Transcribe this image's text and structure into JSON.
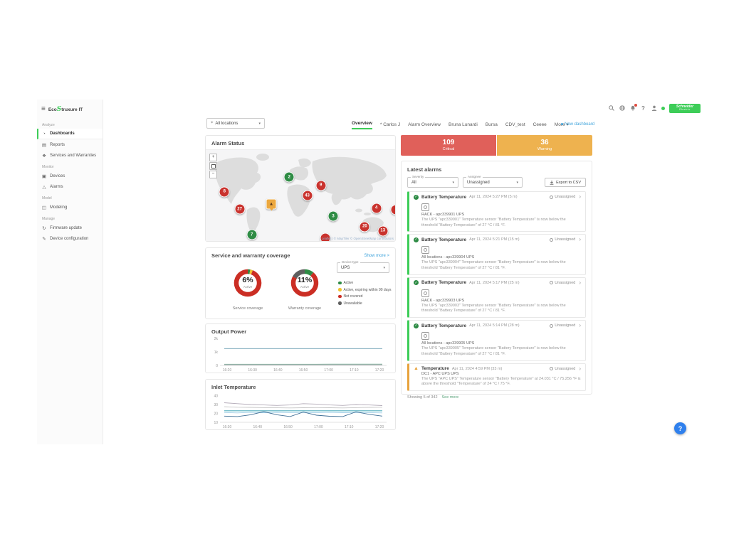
{
  "brand": {
    "logo_eco": "Eco",
    "logo_s": "S",
    "logo_rest": "truxure IT"
  },
  "header": {
    "icons": [
      "search-icon",
      "globe-icon",
      "notifications-bell-icon",
      "help-icon",
      "user-icon",
      "status-dot"
    ],
    "schneider_line1": "Schneider",
    "schneider_line2": "Electric"
  },
  "sidebar": {
    "sections": [
      {
        "label": "Analyze",
        "items": [
          {
            "label": "Dashboards",
            "icon": "dashboards-icon",
            "glyph": "◔",
            "active": true
          },
          {
            "label": "Reports",
            "icon": "reports-icon",
            "glyph": "▤",
            "active": false
          },
          {
            "label": "Services and Warranties",
            "icon": "services-warranties-icon",
            "glyph": "❖",
            "active": false
          }
        ]
      },
      {
        "label": "Monitor",
        "items": [
          {
            "label": "Devices",
            "icon": "devices-icon",
            "glyph": "▣",
            "active": false
          },
          {
            "label": "Alarms",
            "icon": "alarms-icon",
            "glyph": "△",
            "active": false
          }
        ]
      },
      {
        "label": "Model",
        "items": [
          {
            "label": "Modeling",
            "icon": "modeling-icon",
            "glyph": "◫",
            "active": false
          }
        ]
      },
      {
        "label": "Manage",
        "items": [
          {
            "label": "Firmware update",
            "icon": "firmware-update-icon",
            "glyph": "↻",
            "active": false
          },
          {
            "label": "Device configuration",
            "icon": "device-configuration-icon",
            "glyph": "✎",
            "active": false
          }
        ]
      }
    ]
  },
  "topbar": {
    "location_selector": "All locations",
    "tabs": [
      {
        "label": "Overview",
        "active": true
      },
      {
        "label": "* Carlos J",
        "active": false
      },
      {
        "label": "Alarm Overview",
        "active": false
      },
      {
        "label": "Bruna Lunardi",
        "active": false
      },
      {
        "label": "Bursa",
        "active": false
      },
      {
        "label": "CDV_test",
        "active": false
      },
      {
        "label": "Ceeee",
        "active": false
      },
      {
        "label": "More ▾",
        "active": false
      }
    ],
    "new_dashboard": "New dashboard"
  },
  "map_card": {
    "title": "Alarm Status",
    "controls": {
      "zoom_in": "+",
      "zoom_out": "−"
    },
    "attribution": "Leaflet | © MapTiler © OpenStreetMap contributors",
    "markers": [
      {
        "type": "critical",
        "count": "8",
        "x": 9.9,
        "y": 46
      },
      {
        "type": "critical",
        "count": "27",
        "x": 17.9,
        "y": 65
      },
      {
        "type": "warning",
        "count": "",
        "x": 34.6,
        "y": 59
      },
      {
        "type": "ok",
        "count": "2",
        "x": 44.1,
        "y": 30
      },
      {
        "type": "critical",
        "count": "43",
        "x": 53.6,
        "y": 50
      },
      {
        "type": "critical",
        "count": "9",
        "x": 60.8,
        "y": 39
      },
      {
        "type": "ok",
        "count": "3",
        "x": 67.3,
        "y": 73
      },
      {
        "type": "ok",
        "count": "7",
        "x": 24.3,
        "y": 93
      },
      {
        "type": "critical",
        "count": "",
        "x": 63.1,
        "y": 97
      },
      {
        "type": "critical",
        "count": "20",
        "x": 84.0,
        "y": 84
      },
      {
        "type": "critical",
        "count": "13",
        "x": 93.5,
        "y": 89
      },
      {
        "type": "critical",
        "count": "4",
        "x": 90.1,
        "y": 64
      },
      {
        "type": "critical",
        "count": "",
        "x": 100.5,
        "y": 66
      }
    ]
  },
  "alarm_summary": {
    "critical": {
      "count": "109",
      "label": "Critical",
      "color": "#e0605a"
    },
    "warning": {
      "count": "36",
      "label": "Warning",
      "color": "#eeb24f"
    }
  },
  "latest_alarms": {
    "title": "Latest alarms",
    "filters": {
      "severity_label": "Severity",
      "severity_value": "All",
      "assignee_label": "Assignee",
      "assignee_value": "Unassigned"
    },
    "export_label": "Export to CSV",
    "items": [
      {
        "severity": "cleared",
        "title": "Battery Temperature",
        "time": "Apr 11, 2024 5:27 PM (5 m)",
        "assignee": "Unassigned",
        "device": "RACK - apc339901 UPS",
        "description": "The UPS \"apc339901\" Temperature sensor \"Battery Temperature\" is now below the threshold \"Battery Temperature\" of 27 °C / 81 °F."
      },
      {
        "severity": "cleared",
        "title": "Battery Temperature",
        "time": "Apr 11, 2024 5:21 PM (15 m)",
        "assignee": "Unassigned",
        "device": "All locations - apc339904 UPS",
        "description": "The UPS \"apc339904\" Temperature sensor \"Battery Temperature\" is now below the threshold \"Battery Temperature\" of 27 °C / 81 °F."
      },
      {
        "severity": "cleared",
        "title": "Battery Temperature",
        "time": "Apr 11, 2024 5:17 PM (25 m)",
        "assignee": "Unassigned",
        "device": "RACK - apc339903 UPS",
        "description": "The UPS \"apc339903\" Temperature sensor \"Battery Temperature\" is now below the threshold \"Battery Temperature\" of 27 °C / 81 °F."
      },
      {
        "severity": "cleared",
        "title": "Battery Temperature",
        "time": "Apr 11, 2024 5:14 PM (28 m)",
        "assignee": "Unassigned",
        "device": "All locations - apc339905 UPS",
        "description": "The UPS \"apc339905\" Temperature sensor \"Battery Temperature\" is now below the threshold \"Battery Temperature\" of 27 °C / 81 °F."
      },
      {
        "severity": "warning",
        "title": "Temperature",
        "time": "Apr 11, 2024 4:59 PM (33 m)",
        "assignee": "Unassigned",
        "device": "DC1 - APC UPS UPS",
        "description": "The UPS \"APC UPS\" Temperature sensor \"Battery Temperature\" at 24.031 °C / 75.256 °F is above the threshold \"Temperature\" of 24 °C / 75 °F."
      }
    ],
    "footer": "Showing 5 of 342",
    "see_more": "See more"
  },
  "coverage_card": {
    "title": "Service and warranty coverage",
    "show_more": "Show more >",
    "device_type_label": "Device type",
    "device_type_value": "UPS",
    "legend": [
      {
        "label": "Active",
        "color": "#2e8b45"
      },
      {
        "label": "Active, expiring within 90 days",
        "color": "#f0c330"
      },
      {
        "label": "Not covered",
        "color": "#cb2e24"
      },
      {
        "label": "Unavailable",
        "color": "#5f5f5f"
      }
    ]
  },
  "chart_data": [
    {
      "id": "service-coverage",
      "type": "pie",
      "title": "Service coverage",
      "center_value": "6%",
      "center_label": "Active",
      "segments": [
        {
          "label": "Active",
          "value": 3,
          "color": "#2e8b45"
        },
        {
          "label": "Active, expiring within 90 days",
          "value": 3,
          "color": "#f0c330"
        },
        {
          "label": "Not covered",
          "value": 94,
          "color": "#cb2e24"
        }
      ]
    },
    {
      "id": "warranty-coverage",
      "type": "pie",
      "title": "Warranty coverage",
      "center_value": "11%",
      "center_label": "Active",
      "segments": [
        {
          "label": "Active",
          "value": 11,
          "color": "#2e8b45"
        },
        {
          "label": "Not covered",
          "value": 72,
          "color": "#cb2e24"
        },
        {
          "label": "Unavailable",
          "value": 17,
          "color": "#5f5f5f"
        }
      ]
    },
    {
      "id": "output-power",
      "type": "line",
      "title": "Output Power",
      "x_ticks": [
        "16:20",
        "16:30",
        "16:40",
        "16:50",
        "17:00",
        "17:10",
        "17:20"
      ],
      "ylim": [
        0,
        2000
      ],
      "yticks": [
        {
          "value": 0,
          "label": "0"
        },
        {
          "value": 1000,
          "label": "1k"
        },
        {
          "value": 2000,
          "label": "2k"
        }
      ],
      "series": [
        {
          "name": "ups-output-1",
          "color": "#6d9fb3",
          "values": [
            1250,
            1250,
            1250,
            1250,
            1250,
            1250,
            1250,
            1250,
            1250,
            1250,
            1250,
            1250,
            1250
          ]
        },
        {
          "name": "ups-output-2",
          "color": "#7fb59b",
          "values": [
            90,
            90,
            90,
            90,
            90,
            90,
            90,
            90,
            95,
            95,
            95,
            95,
            95
          ]
        },
        {
          "name": "ups-output-3",
          "color": "#9aa0a6",
          "values": [
            45,
            45,
            45,
            45,
            45,
            45,
            45,
            45,
            45,
            45,
            45,
            45,
            45
          ]
        }
      ]
    },
    {
      "id": "inlet-temperature",
      "type": "line",
      "title": "Inlet Temperature",
      "x_ticks": [
        "16:30",
        "16:40",
        "16:50",
        "17:00",
        "17:10",
        "17:20"
      ],
      "ylim": [
        10,
        42
      ],
      "yticks": [
        {
          "value": 10,
          "label": "10"
        },
        {
          "value": 20,
          "label": "20"
        },
        {
          "value": 30,
          "label": "30"
        },
        {
          "value": 40,
          "label": "40"
        }
      ],
      "series": [
        {
          "name": "sensor-1",
          "color": "#b3abb8",
          "values": [
            32,
            31,
            30,
            29.5,
            29,
            29.5,
            31,
            30.5,
            29.5,
            29,
            30,
            29.5,
            28.8
          ]
        },
        {
          "name": "sensor-2",
          "color": "#c6c6c6",
          "values": [
            27.5,
            27,
            26.8,
            26.5,
            26.3,
            26.2,
            26.4,
            26.6,
            26.4,
            26.2,
            26.5,
            26.8,
            27
          ]
        },
        {
          "name": "sensor-3",
          "color": "#79bfcc",
          "values": [
            23.2,
            23.2,
            23.2,
            23.2,
            23.2,
            23.2,
            23.2,
            23.2,
            23.2,
            23.2,
            23.2,
            23.2,
            23.2
          ]
        },
        {
          "name": "sensor-4",
          "color": "#a9dbe2",
          "values": [
            22.3,
            22.3,
            22.3,
            22.3,
            22.3,
            22.3,
            22.3,
            22.3,
            22.3,
            22.3,
            22.3,
            22.3,
            22.3
          ]
        },
        {
          "name": "sensor-5",
          "color": "#9ecde6",
          "values": [
            21,
            20.6,
            21.1,
            20.8,
            21.2,
            20.9,
            21,
            20.7,
            21.1,
            20.8,
            21,
            20.9,
            20.6
          ]
        },
        {
          "name": "sensor-6",
          "color": "#3f6f96",
          "values": [
            17,
            16.5,
            18.5,
            22,
            18.5,
            16.5,
            21.5,
            18,
            16.8,
            16.5,
            21.8,
            19,
            17
          ]
        }
      ]
    }
  ],
  "help_button": "?"
}
